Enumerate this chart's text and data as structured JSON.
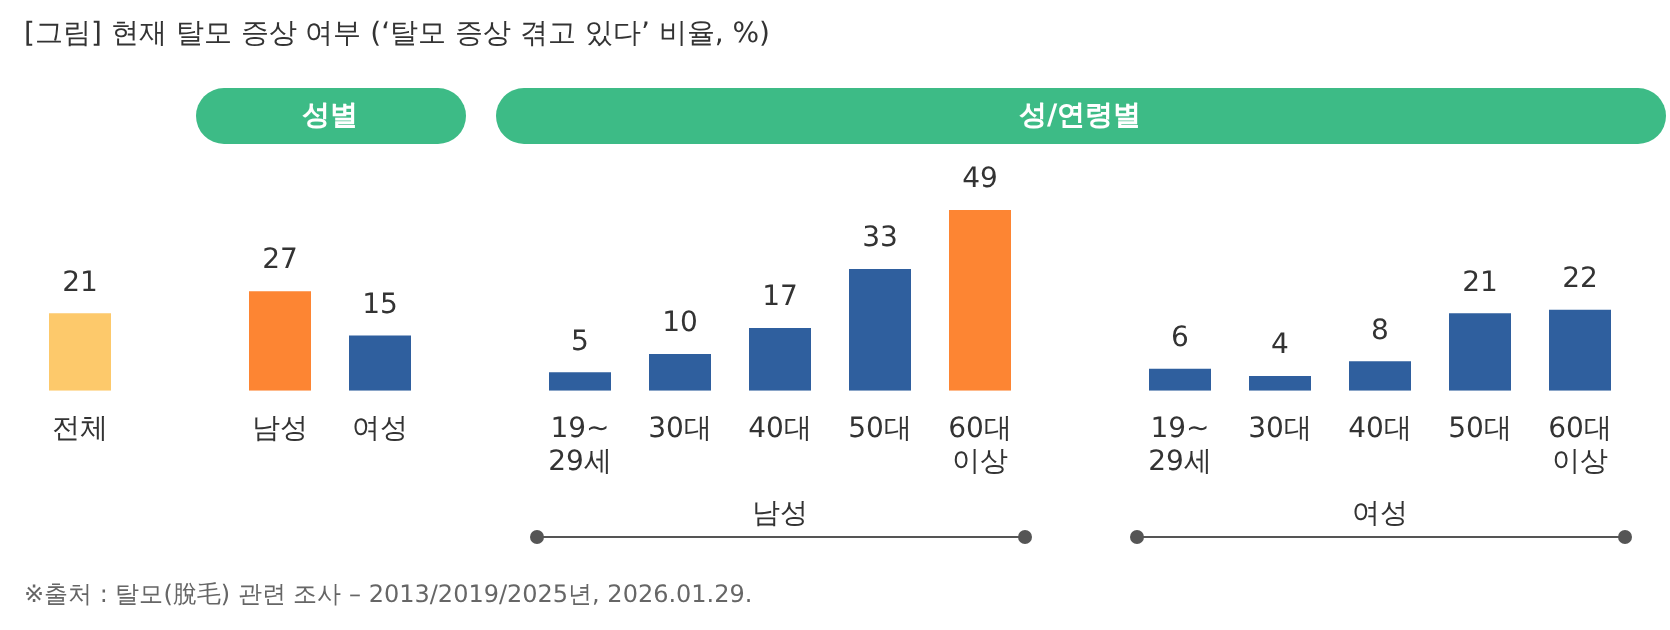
{
  "chart_data": {
    "type": "bar",
    "title": "[그림] 현재 탈모 증상 여부 (‘탈모 증상 겪고 있다’ 비율, %)",
    "categories": [
      "전체",
      null,
      "남성",
      "여성",
      null,
      "19~\n29세",
      "30대",
      "40대",
      "50대",
      "60대\n이상",
      null,
      "19~\n29세",
      "30대",
      "40대",
      "50대",
      "60대\n이상"
    ],
    "values": [
      21,
      null,
      27,
      15,
      null,
      5,
      10,
      17,
      33,
      49,
      null,
      6,
      4,
      8,
      21,
      22
    ],
    "colors": [
      "#fdc96b",
      null,
      "#fd8533",
      "#2f5f9e",
      null,
      "#2f5f9e",
      "#2f5f9e",
      "#2f5f9e",
      "#2f5f9e",
      "#fd8533",
      null,
      "#2f5f9e",
      "#2f5f9e",
      "#2f5f9e",
      "#2f5f9e",
      "#2f5f9e"
    ],
    "data_labels": true,
    "grid": false,
    "legend": false,
    "annotations": [
      "성별",
      "성/연령별",
      "남성",
      "여성",
      "※출처 : 탈모(脫毛) 관련 조사 – 2013/2019/2025년, 2026.01.29."
    ]
  }
}
